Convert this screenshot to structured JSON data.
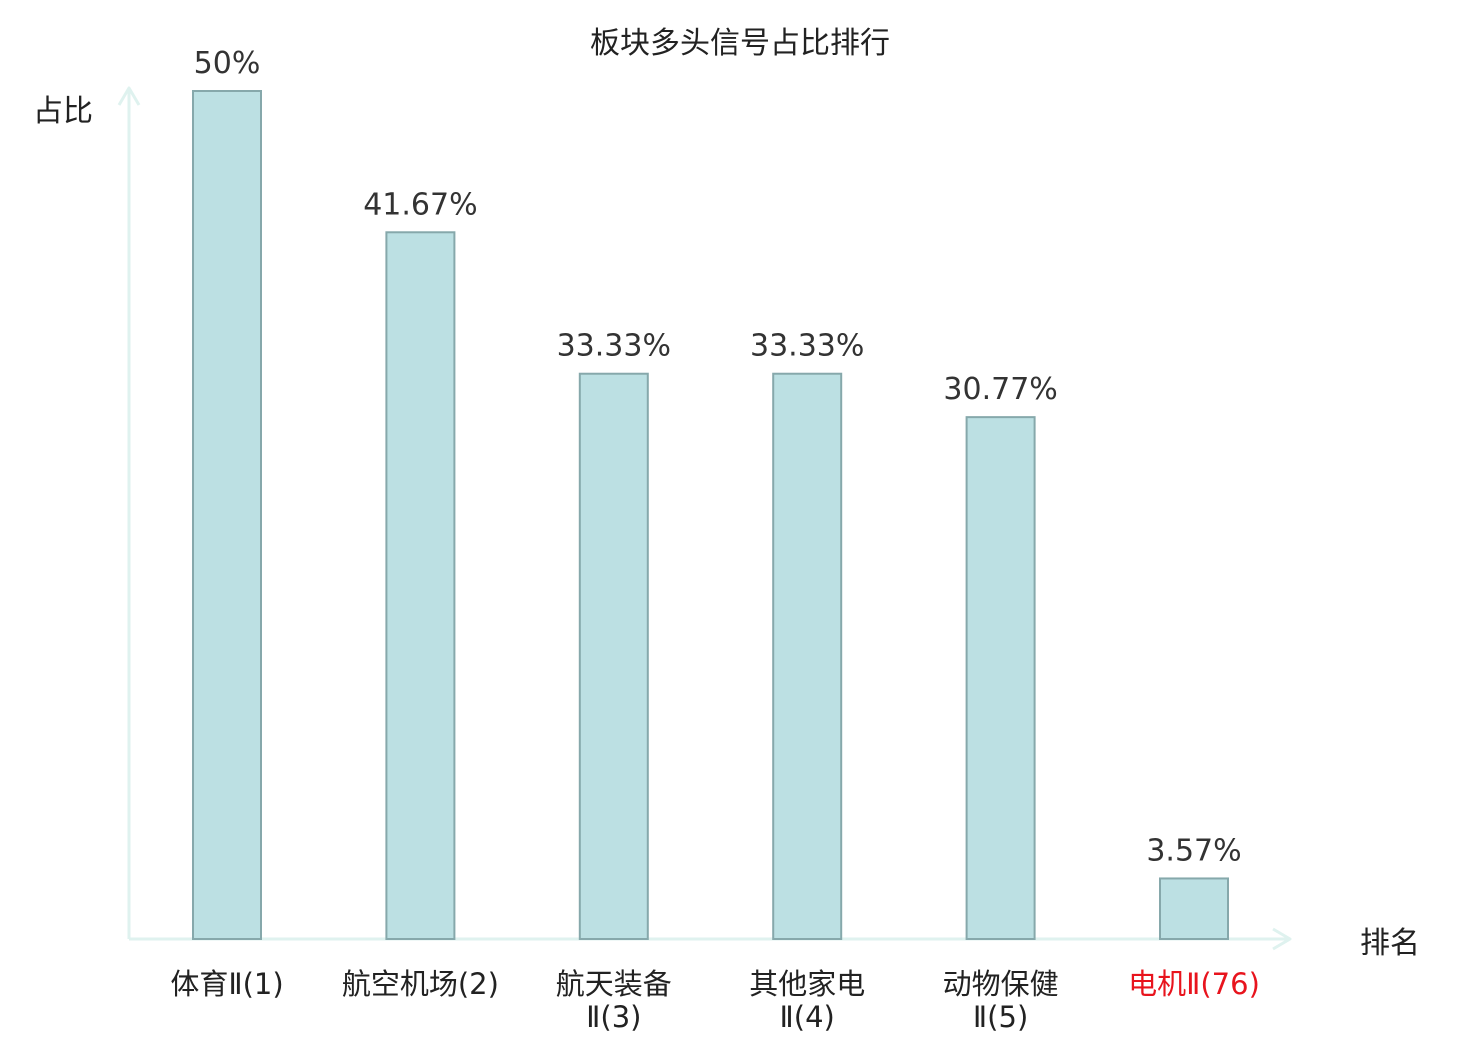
{
  "chart_data": {
    "type": "bar",
    "title": "板块多头信号占比排行",
    "xlabel": "排名",
    "ylabel": "占比",
    "categories": [
      [
        "体育Ⅱ(1)"
      ],
      [
        "航空机场(2)"
      ],
      [
        "航天装备",
        "Ⅱ(3)"
      ],
      [
        "其他家电",
        "Ⅱ(4)"
      ],
      [
        "动物保健",
        "Ⅱ(5)"
      ],
      [
        "电机Ⅱ(76)"
      ]
    ],
    "highlight_category_index": 5,
    "values": [
      50,
      41.67,
      33.33,
      33.33,
      30.77,
      3.57
    ],
    "value_labels": [
      "50%",
      "41.67%",
      "33.33%",
      "33.33%",
      "30.77%",
      "3.57%"
    ],
    "unit": "%",
    "ylim": [
      0,
      50
    ],
    "grid": false,
    "legend": "none"
  },
  "colors": {
    "bar_fill": "#bce0e3",
    "bar_stroke": "#86a8ab",
    "axis": "#dff2ef",
    "text": "#222222",
    "value_text": "#333333",
    "highlight": "#e8141d"
  }
}
